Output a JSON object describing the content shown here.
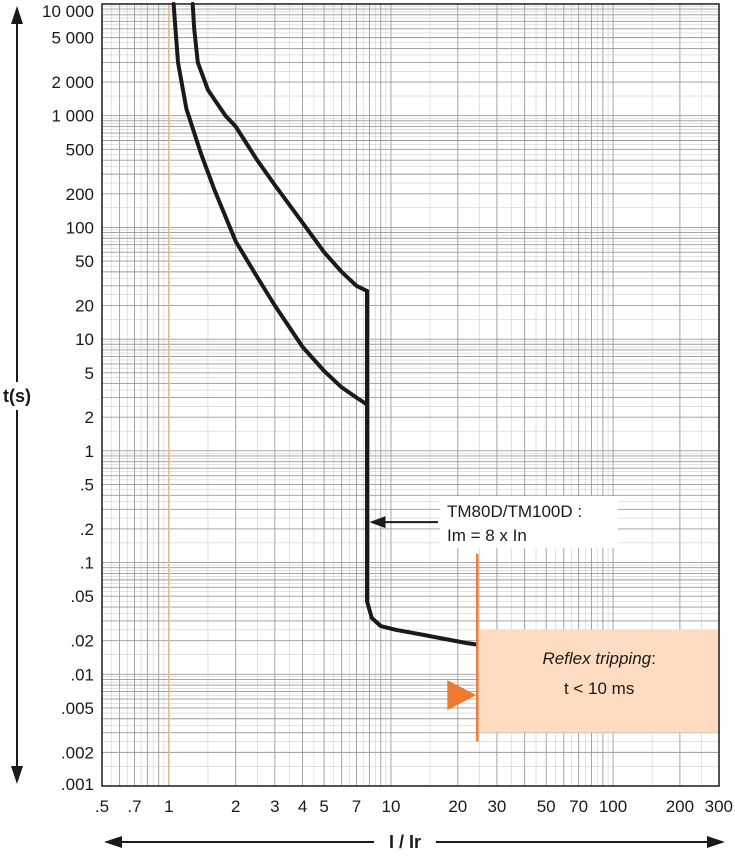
{
  "chart_data": {
    "type": "line",
    "title": "",
    "xlabel": "I / Ir",
    "ylabel": "t(s)",
    "xscale": "log",
    "yscale": "log",
    "xlim": [
      0.5,
      300
    ],
    "ylim": [
      0.001,
      10000
    ],
    "grid": true,
    "x_ticks": [
      {
        "v": 0.5,
        "label": ".5"
      },
      {
        "v": 0.7,
        "label": ".7"
      },
      {
        "v": 1,
        "label": "1"
      },
      {
        "v": 2,
        "label": "2"
      },
      {
        "v": 3,
        "label": "3"
      },
      {
        "v": 4,
        "label": "4"
      },
      {
        "v": 5,
        "label": "5"
      },
      {
        "v": 7,
        "label": "7"
      },
      {
        "v": 10,
        "label": "10"
      },
      {
        "v": 20,
        "label": "20"
      },
      {
        "v": 30,
        "label": "30"
      },
      {
        "v": 50,
        "label": "50"
      },
      {
        "v": 70,
        "label": "70"
      },
      {
        "v": 100,
        "label": "100"
      },
      {
        "v": 200,
        "label": "200"
      },
      {
        "v": 300,
        "label": "300"
      }
    ],
    "y_ticks": [
      {
        "v": 10000,
        "label": "10 000"
      },
      {
        "v": 5000,
        "label": "5 000"
      },
      {
        "v": 2000,
        "label": "2 000"
      },
      {
        "v": 1000,
        "label": "1 000"
      },
      {
        "v": 500,
        "label": "500"
      },
      {
        "v": 200,
        "label": "200"
      },
      {
        "v": 100,
        "label": "100"
      },
      {
        "v": 50,
        "label": "50"
      },
      {
        "v": 20,
        "label": "20"
      },
      {
        "v": 10,
        "label": "10"
      },
      {
        "v": 5,
        "label": "5"
      },
      {
        "v": 2,
        "label": "2"
      },
      {
        "v": 1,
        "label": "1"
      },
      {
        "v": 0.5,
        "label": ".5"
      },
      {
        "v": 0.2,
        "label": ".2"
      },
      {
        "v": 0.1,
        "label": ".1"
      },
      {
        "v": 0.05,
        "label": ".05"
      },
      {
        "v": 0.02,
        "label": ".02"
      },
      {
        "v": 0.01,
        "label": ".01"
      },
      {
        "v": 0.005,
        "label": ".005"
      },
      {
        "v": 0.002,
        "label": ".002"
      },
      {
        "v": 0.001,
        "label": ".001"
      }
    ],
    "series": [
      {
        "role": "lower-tripping-curve",
        "points": [
          [
            1.05,
            10000
          ],
          [
            1.1,
            3000
          ],
          [
            1.2,
            1150
          ],
          [
            1.4,
            450
          ],
          [
            1.6,
            220
          ],
          [
            2,
            75
          ],
          [
            2.5,
            36
          ],
          [
            3,
            20
          ],
          [
            4,
            8.5
          ],
          [
            5,
            5.2
          ],
          [
            6,
            3.7
          ],
          [
            7,
            3
          ],
          [
            7.8,
            2.6
          ]
        ]
      },
      {
        "role": "upper-tripping-curve",
        "points": [
          [
            1.28,
            10000
          ],
          [
            1.3,
            6000
          ],
          [
            1.35,
            3000
          ],
          [
            1.5,
            1700
          ],
          [
            1.8,
            1000
          ],
          [
            2,
            800
          ],
          [
            2.5,
            400
          ],
          [
            3,
            240
          ],
          [
            4,
            110
          ],
          [
            5,
            60
          ],
          [
            6,
            40
          ],
          [
            7,
            30
          ],
          [
            7.8,
            27
          ]
        ]
      },
      {
        "role": "instantaneous-trip",
        "points": [
          [
            7.8,
            27
          ],
          [
            7.8,
            0.045
          ],
          [
            8.2,
            0.032
          ],
          [
            9,
            0.027
          ],
          [
            10.5,
            0.025
          ],
          [
            14,
            0.0225
          ],
          [
            18,
            0.0205
          ],
          [
            22,
            0.019
          ],
          [
            24,
            0.0185
          ]
        ]
      }
    ],
    "reference_line": {
      "x": 1,
      "color": "#e8b98c"
    },
    "annotations": [
      {
        "id": "im",
        "line1": "TM80D/TM100D :",
        "line2": "Im = 8 x In",
        "arrow_to": [
          8,
          0.23
        ]
      }
    ],
    "reflex": {
      "title": "Reflex tripping",
      "title_suffix": ":",
      "value": "t < 10 ms",
      "x_from": 25,
      "x_to": 300,
      "y_from": 0.003,
      "y_to": 0.025,
      "line_y_from": 0.0025,
      "line_y_to": 0.12,
      "fill": "#fddcc2",
      "line_color": "#ee7a30",
      "marker_color": "#ee7a30"
    },
    "colors": {
      "curve": "#1a1a1a",
      "grid": "#9a9a9a",
      "grid_minor": "#c4c4c4",
      "frame": "#1a1a1a"
    }
  }
}
